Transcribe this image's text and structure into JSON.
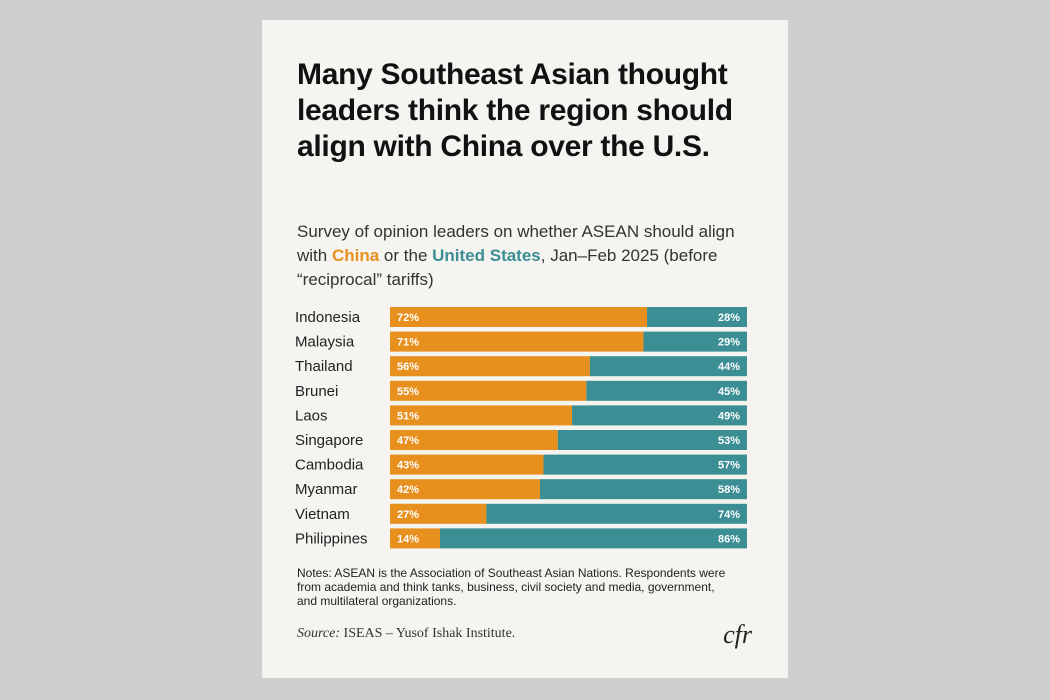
{
  "colors": {
    "china": "#e8901e",
    "us": "#3a8e94",
    "card": "#f5f4f1"
  },
  "title": "Many Southeast Asian thought leaders think the region should align with China over the U.S.",
  "subtitle": {
    "part1": "Survey of opinion leaders on whether ASEAN should align with ",
    "china": "China",
    "part2": " or the ",
    "us": "United States",
    "part3": ", Jan–Feb 2025 (before “reciprocal” tariffs)"
  },
  "chart_data": {
    "type": "bar",
    "orientation": "horizontal-stacked-100",
    "categories": [
      "Indonesia",
      "Malaysia",
      "Thailand",
      "Brunei",
      "Laos",
      "Singapore",
      "Cambodia",
      "Myanmar",
      "Vietnam",
      "Philippines"
    ],
    "series": [
      {
        "name": "China",
        "values": [
          72,
          71,
          56,
          55,
          51,
          47,
          43,
          42,
          27,
          14
        ]
      },
      {
        "name": "United States",
        "values": [
          28,
          29,
          44,
          45,
          49,
          53,
          57,
          58,
          74,
          86
        ]
      }
    ],
    "labels": {
      "china": [
        "72%",
        "71%",
        "56%",
        "55%",
        "51%",
        "47%",
        "43%",
        "42%",
        "27%",
        "14%"
      ],
      "us": [
        "28%",
        "29%",
        "44%",
        "45%",
        "49%",
        "53%",
        "57%",
        "58%",
        "74%",
        "86%"
      ]
    },
    "xlim": [
      0,
      100
    ],
    "grid": false,
    "legend": "none"
  },
  "notes": "Notes: ASEAN is the Association of Southeast Asian Nations. Respondents were from academia and think tanks, business, civil society and media, government, and multilateral organizations.",
  "source": {
    "label": "Source:",
    "text": " ISEAS – Yusof Ishak Institute."
  },
  "logo": "cfr"
}
